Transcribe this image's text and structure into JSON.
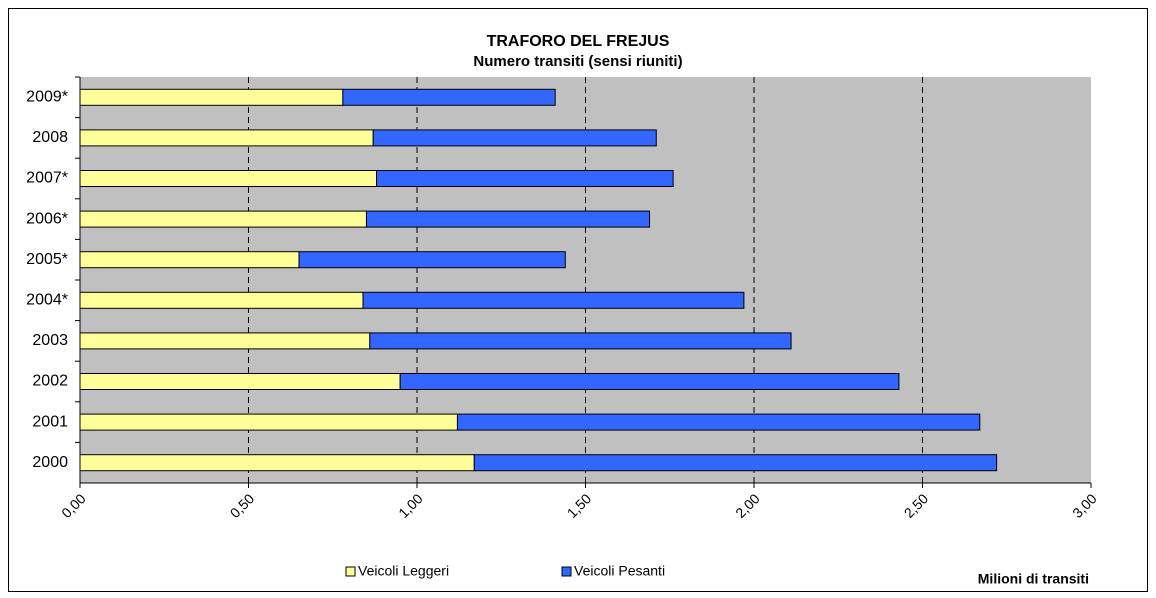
{
  "chart_data": {
    "type": "stacked-bar-horizontal",
    "title": "TRAFORO DEL FREJUS",
    "subtitle": "Numero transiti (sensi riuniti)",
    "x_label": "Milioni di transiti",
    "categories": [
      "2009*",
      "2008",
      "2007*",
      "2006*",
      "2005*",
      "2004*",
      "2003",
      "2002",
      "2001",
      "2000"
    ],
    "series": [
      {
        "name": "Veicoli Leggeri",
        "color": "#ffff99",
        "values": [
          0.78,
          0.87,
          0.88,
          0.85,
          0.65,
          0.84,
          0.86,
          0.95,
          1.12,
          1.17
        ]
      },
      {
        "name": "Veicoli Pesanti",
        "color": "#3366ff",
        "values": [
          0.63,
          0.84,
          0.88,
          0.84,
          0.79,
          1.13,
          1.25,
          1.48,
          1.55,
          1.55
        ]
      }
    ],
    "xlim": [
      0,
      3
    ],
    "xticks": [
      {
        "value": 0,
        "label": "0,00"
      },
      {
        "value": 0.5,
        "label": "0,50"
      },
      {
        "value": 1,
        "label": "1,00"
      },
      {
        "value": 1.5,
        "label": "1,50"
      },
      {
        "value": 2,
        "label": "2,00"
      },
      {
        "value": 2.5,
        "label": "2,50"
      },
      {
        "value": 3,
        "label": "3,00"
      }
    ],
    "grid": true,
    "legend": "bottom"
  }
}
